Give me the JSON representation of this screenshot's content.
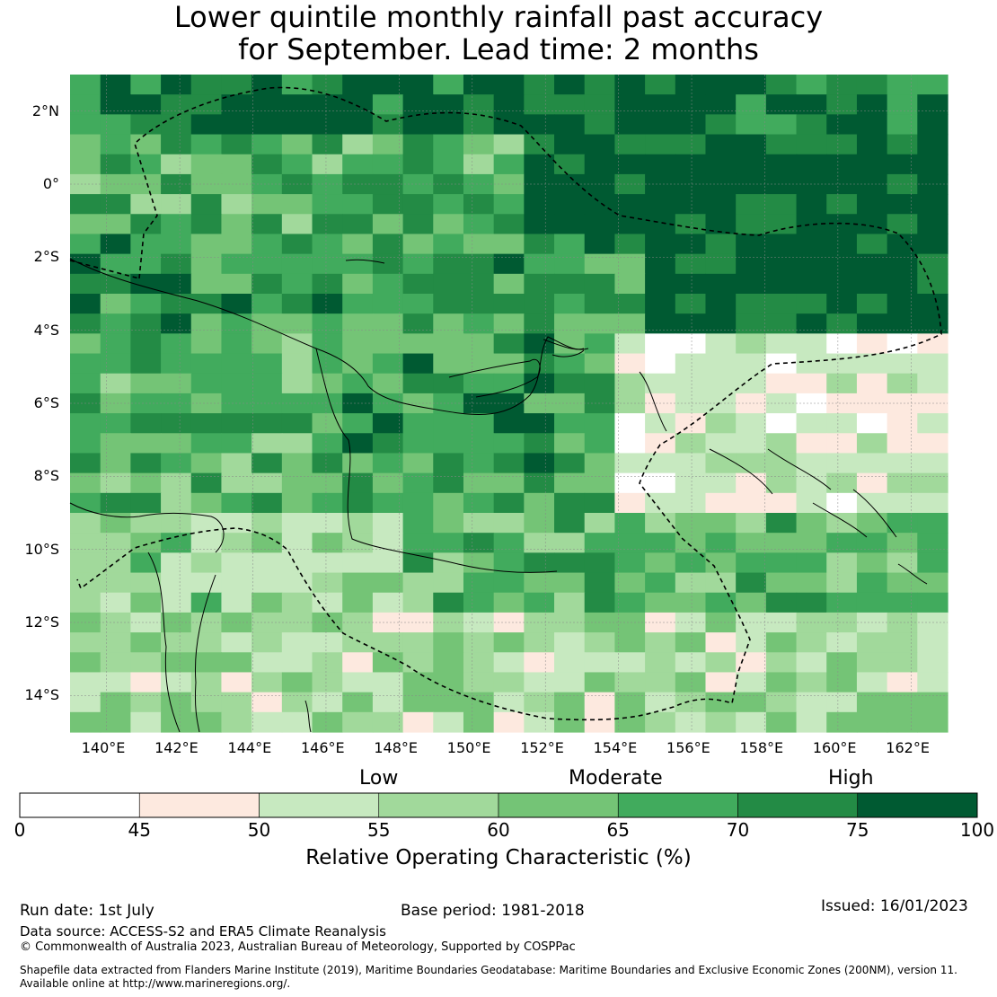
{
  "title": {
    "line1": "Lower quintile monthly rainfall past accuracy",
    "line2": "for September. Lead time: 2 months"
  },
  "map": {
    "lon_range": [
      139,
      163
    ],
    "lat_range": [
      -15,
      3
    ],
    "lon_ticks": [
      "140°E",
      "142°E",
      "144°E",
      "146°E",
      "148°E",
      "150°E",
      "152°E",
      "154°E",
      "156°E",
      "158°E",
      "160°E",
      "162°E"
    ],
    "lat_ticks": [
      "2°N",
      "0°",
      "2°S",
      "4°S",
      "6°S",
      "8°S",
      "10°S",
      "12°S",
      "14°S"
    ],
    "grid": true,
    "boundary_style": "dashed"
  },
  "colorbar": {
    "categories": [
      "Low",
      "Moderate",
      "High"
    ],
    "ticks": [
      "0",
      "45",
      "50",
      "55",
      "60",
      "65",
      "70",
      "75",
      "100"
    ],
    "colors": [
      "#ffffff",
      "#fde9df",
      "#c7e9c0",
      "#a1d99b",
      "#74c476",
      "#41ab5d",
      "#238b45",
      "#005a32"
    ],
    "label": "Relative Operating Characteristic (%)"
  },
  "footer": {
    "run_date": "Run date: 1st July",
    "base_period": "Base period: 1981-2018",
    "issued": "Issued: 16/01/2023",
    "data_source": "Data source: ACCESS-S2 and ERA5 Climate Reanalysis",
    "copyright": "© Commonwealth of Australia 2023, Australian Bureau of Meteorology, Supported by COSPPac",
    "shapefile_line1": "Shapefile data extracted from Flanders Marine Institute (2019), Maritime Boundaries Geodatabase: Maritime Boundaries and Exclusive Economic Zones (200NM), version 11.",
    "shapefile_line2": "Available online at http://www.marineregions.org/."
  }
}
